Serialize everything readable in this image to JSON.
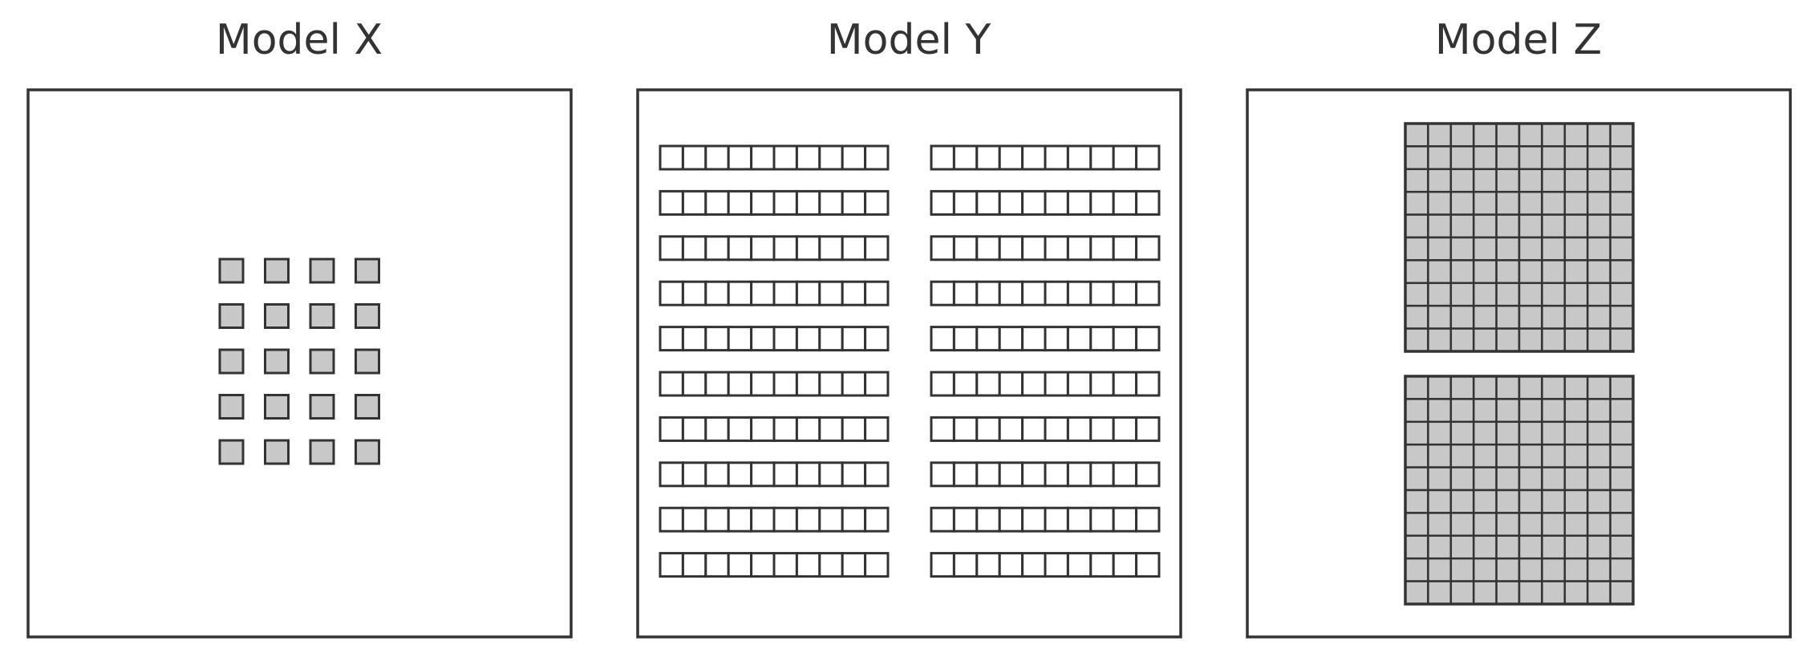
{
  "colors": {
    "stroke": "#333333",
    "cell_fill": "#c8c8c8",
    "background": "#ffffff",
    "empty_fill": "#ffffff"
  },
  "panels": [
    {
      "id": "model-x",
      "title": "Model X",
      "grid": {
        "rows": 5,
        "cols": 4,
        "filled": true,
        "separated": true
      }
    },
    {
      "id": "model-y",
      "title": "Model Y",
      "grid": {
        "blocks": 2,
        "rows": 10,
        "cols": 10,
        "filled": false,
        "separated": "rows"
      }
    },
    {
      "id": "model-z",
      "title": "Model Z",
      "grid": {
        "blocks": 2,
        "rows": 10,
        "cols": 10,
        "filled": true,
        "separated": false
      }
    }
  ]
}
